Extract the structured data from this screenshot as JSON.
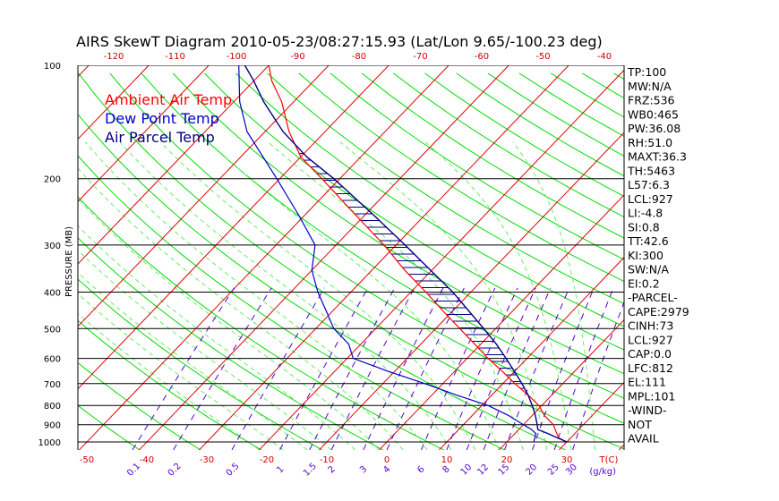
{
  "colors": {
    "ambient": "#ff0000",
    "dewpoint": "#0000cc",
    "parcel": "#000080",
    "isotherm": "#e00000",
    "dry_adiabat": "#00dd00",
    "moist_adiabat": "#66ee66",
    "mixing_ratio": "#5500cc",
    "isobar": "#000000",
    "hatch": "#000080"
  },
  "chart_data": {
    "type": "line",
    "title": "AIRS SkewT Diagram 2010-05-23/08:27:15.93 (Lat/Lon 9.65/-100.23 deg)",
    "ylabel": "PRESSURE (MB)",
    "x_unit_label": "T(C)",
    "mixing_ratio_unit_label": "(g/kg)",
    "y_scale": "log",
    "ylim": [
      1000,
      100
    ],
    "pressure_ticks": [
      100,
      200,
      300,
      400,
      500,
      600,
      700,
      800,
      900,
      1000
    ],
    "bottom_temp_ticks": [
      -50,
      -40,
      -30,
      -20,
      -10,
      0,
      10,
      20,
      30
    ],
    "top_temp_ticks": [
      -120,
      -110,
      -100,
      -90,
      -80,
      -70,
      -60,
      -50,
      -40
    ],
    "mixing_ratio_ticks": [
      "0.1",
      "0.2",
      "0.5",
      "1",
      "1.5",
      "2",
      "3",
      "4",
      "6",
      "8",
      "10",
      "12",
      "15",
      "20",
      "25",
      "30"
    ],
    "legend": [
      "Ambient Air Temp",
      "Dew Point Temp",
      "Air Parcel Temp"
    ],
    "series": [
      {
        "name": "Ambient Air Temp",
        "points": [
          [
            1000,
            30.0
          ],
          [
            975,
            28.0
          ],
          [
            950,
            27.0
          ],
          [
            925,
            26.0
          ],
          [
            900,
            25.0
          ],
          [
            850,
            22.0
          ],
          [
            800,
            19.5
          ],
          [
            750,
            16.0
          ],
          [
            700,
            12.0
          ],
          [
            650,
            8.0
          ],
          [
            600,
            3.5
          ],
          [
            550,
            -1.0
          ],
          [
            500,
            -6.0
          ],
          [
            450,
            -11.5
          ],
          [
            400,
            -17.5
          ],
          [
            350,
            -24.5
          ],
          [
            300,
            -32.0
          ],
          [
            250,
            -41.5
          ],
          [
            200,
            -53.0
          ],
          [
            175,
            -60.0
          ],
          [
            150,
            -66.0
          ],
          [
            125,
            -72.0
          ],
          [
            110,
            -77.0
          ],
          [
            100,
            -80.0
          ]
        ]
      },
      {
        "name": "Dew Point Temp",
        "points": [
          [
            1000,
            24.5
          ],
          [
            975,
            24.0
          ],
          [
            950,
            23.5
          ],
          [
            925,
            22.0
          ],
          [
            900,
            20.0
          ],
          [
            850,
            16.0
          ],
          [
            800,
            11.0
          ],
          [
            750,
            4.0
          ],
          [
            700,
            -3.0
          ],
          [
            650,
            -11.0
          ],
          [
            600,
            -19.0
          ],
          [
            550,
            -22.0
          ],
          [
            500,
            -27.0
          ],
          [
            450,
            -31.0
          ],
          [
            400,
            -35.5
          ],
          [
            350,
            -40.0
          ],
          [
            300,
            -43.5
          ],
          [
            250,
            -51.0
          ],
          [
            200,
            -60.5
          ],
          [
            150,
            -73.0
          ],
          [
            125,
            -79.0
          ],
          [
            100,
            -85.0
          ]
        ]
      },
      {
        "name": "Air Parcel Temp",
        "points": [
          [
            1000,
            30.0
          ],
          [
            950,
            25.5
          ],
          [
            927,
            23.2
          ],
          [
            900,
            22.3
          ],
          [
            850,
            20.5
          ],
          [
            800,
            18.4
          ],
          [
            750,
            16.0
          ],
          [
            700,
            13.2
          ],
          [
            650,
            10.0
          ],
          [
            600,
            6.5
          ],
          [
            550,
            2.6
          ],
          [
            500,
            -2.0
          ],
          [
            450,
            -7.2
          ],
          [
            400,
            -13.0
          ],
          [
            350,
            -20.2
          ],
          [
            300,
            -28.5
          ],
          [
            250,
            -38.5
          ],
          [
            200,
            -51.0
          ],
          [
            175,
            -59.0
          ],
          [
            150,
            -67.0
          ],
          [
            125,
            -75.0
          ],
          [
            110,
            -80.0
          ],
          [
            100,
            -84.0
          ]
        ]
      }
    ],
    "indices": [
      "TP:100",
      "MW:N/A",
      "FRZ:536",
      "WB0:465",
      "PW:36.08",
      "RH:51.0",
      "MAXT:36.3",
      "TH:5463",
      "L57:6.3",
      "LCL:927",
      "LI:-4.8",
      "SI:0.8",
      "TT:42.6",
      "KI:300",
      "SW:N/A",
      "EI:0.2",
      "-PARCEL-",
      "CAPE:2979",
      "CINH:73",
      "LCL:927",
      "CAP:0.0",
      "LFC:812",
      "EL:111",
      "MPL:101",
      "-WIND-",
      "NOT",
      "AVAIL"
    ]
  }
}
